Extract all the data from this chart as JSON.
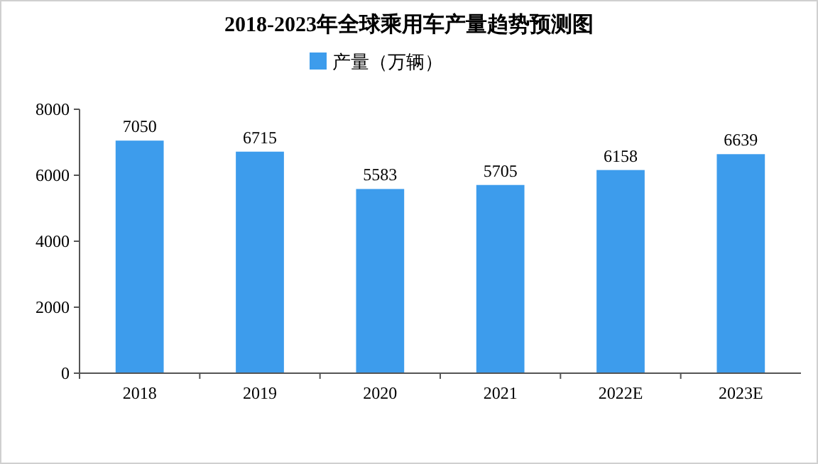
{
  "chart_data": {
    "type": "bar",
    "title": "2018-2023年全球乘用车产量趋势预测图",
    "categories": [
      "2018",
      "2019",
      "2020",
      "2021",
      "2022E",
      "2023E"
    ],
    "series": [
      {
        "name": "产量（万辆）",
        "color": "#3d9cec",
        "values": [
          7050,
          6715,
          5583,
          5705,
          6158,
          6639
        ]
      }
    ],
    "ylim": [
      0,
      8000
    ],
    "yticks": [
      0,
      2000,
      4000,
      6000,
      8000
    ],
    "grid": false,
    "legend": "top",
    "data_labels": true
  }
}
